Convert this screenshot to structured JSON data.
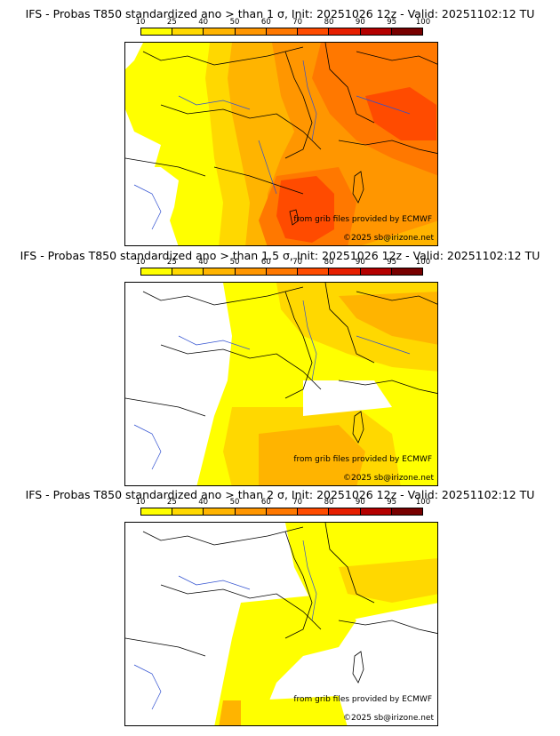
{
  "colorbar": {
    "ticks": [
      "10",
      "25",
      "40",
      "50",
      "60",
      "70",
      "80",
      "90",
      "95",
      "100"
    ],
    "colors": [
      "#ffff00",
      "#ffd800",
      "#ffb400",
      "#ff9600",
      "#ff7800",
      "#ff4b00",
      "#e61e00",
      "#b40000",
      "#780000"
    ]
  },
  "panels": [
    {
      "title": "IFS - Probas T850  standardized ano > than 1 σ, Init: 20251026 12z - Valid: 20251102:12 TU",
      "credit_data": "from grib files provided by ECMWF",
      "credit_copyright": "©2025 sb@irizone.net"
    },
    {
      "title": "IFS - Probas T850  standardized ano > than 1.5 σ, Init: 20251026 12z - Valid: 20251102:12 TU",
      "credit_data": "from grib files provided by ECMWF",
      "credit_copyright": "©2025 sb@irizone.net"
    },
    {
      "title": "IFS - Probas T850  standardized ano > than 2 σ, Init: 20251026 12z - Valid: 20251102:12 TU",
      "credit_data": "from grib files provided by ECMWF",
      "credit_copyright": "©2025 sb@irizone.net"
    }
  ]
}
